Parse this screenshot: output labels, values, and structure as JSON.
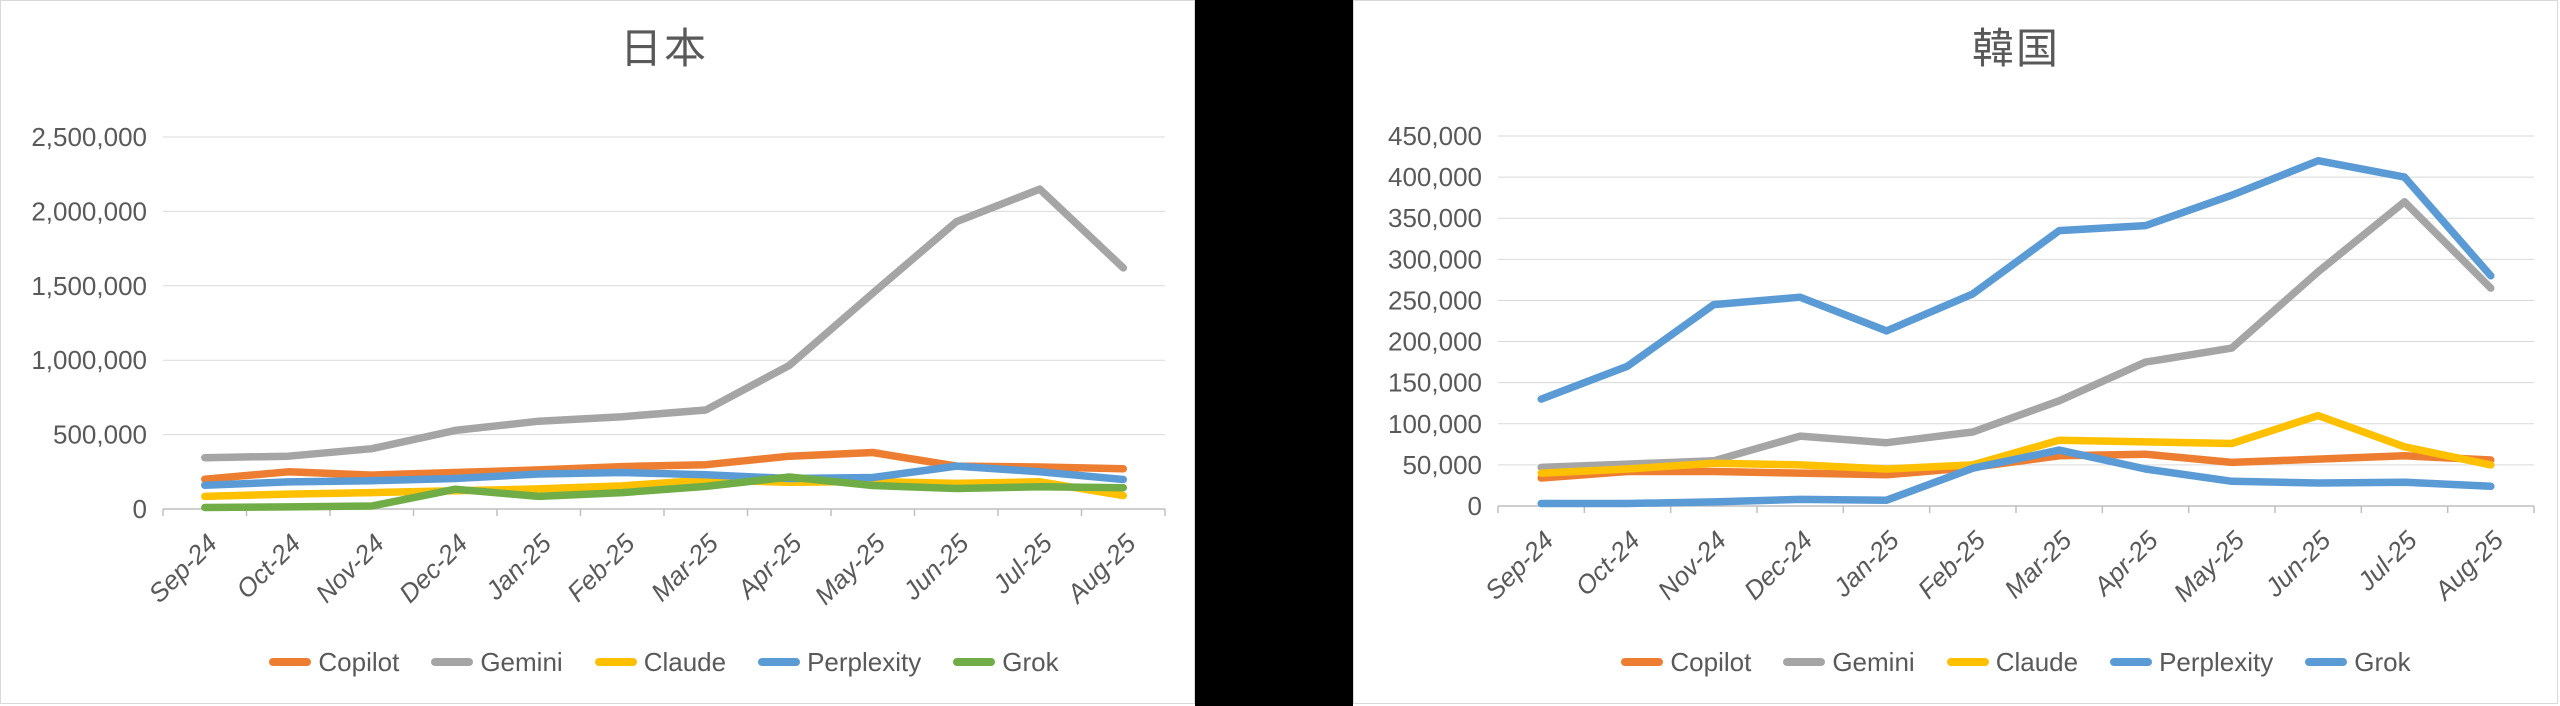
{
  "page": {
    "background": "#FFFFFF",
    "divider_color": "#000000",
    "panel_border_color": "#D9D9D9",
    "grid_color": "#D9D9D9",
    "axis_color": "#BFBFBF",
    "text_color": "#595959"
  },
  "chart_data": [
    {
      "type": "line",
      "title": "日本",
      "grid": true,
      "legend_position": "bottom",
      "xlabel": "",
      "ylabel": "",
      "ylim": [
        0,
        2500000
      ],
      "ytick_step": 500000,
      "yticks": [
        "0",
        "500,000",
        "1,000,000",
        "1,500,000",
        "2,000,000",
        "2,500,000"
      ],
      "categories": [
        "Sep-24",
        "Oct-24",
        "Nov-24",
        "Dec-24",
        "Jan-25",
        "Feb-25",
        "Mar-25",
        "Apr-25",
        "May-25",
        "Jun-25",
        "Jul-25",
        "Aug-25"
      ],
      "series": [
        {
          "name": "Copilot",
          "color": "#ED7D31",
          "values": [
            200000,
            250000,
            228000,
            245000,
            263000,
            285000,
            298000,
            355000,
            380000,
            288000,
            282000,
            270000
          ]
        },
        {
          "name": "Gemini",
          "color": "#A5A5A5",
          "values": [
            345000,
            355000,
            405000,
            528000,
            590000,
            620000,
            665000,
            965000,
            1450000,
            1930000,
            2150000,
            1620000
          ]
        },
        {
          "name": "Claude",
          "color": "#FFC000",
          "values": [
            85000,
            100000,
            110000,
            122000,
            135000,
            155000,
            195000,
            180000,
            185000,
            172000,
            183000,
            90000
          ]
        },
        {
          "name": "Perplexity",
          "color": "#5B9BD5",
          "values": [
            160000,
            182000,
            190000,
            205000,
            235000,
            245000,
            230000,
            205000,
            212000,
            288000,
            250000,
            198000
          ]
        },
        {
          "name": "Grok",
          "color": "#70AD47",
          "values": [
            10000,
            14000,
            20000,
            133000,
            85000,
            110000,
            152000,
            215000,
            158000,
            138000,
            150000,
            143000
          ]
        }
      ]
    },
    {
      "type": "line",
      "title": "韓国",
      "grid": true,
      "legend_position": "bottom",
      "xlabel": "",
      "ylabel": "",
      "ylim": [
        0,
        450000
      ],
      "ytick_step": 50000,
      "yticks": [
        "0",
        "50,000",
        "100,000",
        "150,000",
        "200,000",
        "250,000",
        "300,000",
        "350,000",
        "400,000",
        "450,000"
      ],
      "categories": [
        "Sep-24",
        "Oct-24",
        "Nov-24",
        "Dec-24",
        "Jan-25",
        "Feb-25",
        "Mar-25",
        "Apr-25",
        "May-25",
        "Jun-25",
        "Jul-25",
        "Aug-25"
      ],
      "series": [
        {
          "name": "Copilot",
          "color": "#ED7D31",
          "values": [
            34000,
            42000,
            42000,
            40000,
            38000,
            47000,
            61000,
            63000,
            53000,
            57000,
            61000,
            56000
          ]
        },
        {
          "name": "Gemini",
          "color": "#A5A5A5",
          "values": [
            47000,
            51000,
            55000,
            85000,
            77000,
            90000,
            128000,
            175000,
            192000,
            285000,
            370000,
            265000
          ]
        },
        {
          "name": "Claude",
          "color": "#FFC000",
          "values": [
            40000,
            45000,
            52000,
            50000,
            45000,
            50000,
            80000,
            78000,
            76000,
            110000,
            72000,
            50000
          ]
        },
        {
          "name": "Perplexity",
          "color": "#5B9BD5",
          "values": [
            130000,
            170000,
            245000,
            254000,
            213000,
            258000,
            335000,
            341000,
            378000,
            420000,
            400000,
            280000
          ]
        },
        {
          "name": "Grok",
          "color": "#5B9BD5",
          "values": [
            3000,
            3000,
            5000,
            8000,
            7000,
            46000,
            68000,
            45000,
            30000,
            28000,
            29000,
            24000
          ]
        }
      ]
    }
  ]
}
